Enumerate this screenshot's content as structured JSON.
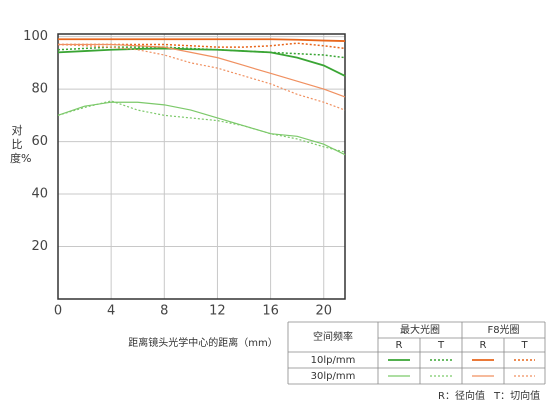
{
  "chart_data": {
    "type": "line",
    "y_label": "对比度%",
    "x_label": "距离镜头光学中心的距离（mm）",
    "x": [
      0,
      2,
      4,
      6,
      8,
      10,
      12,
      14,
      16,
      18,
      20,
      21.6
    ],
    "xlim": [
      0,
      21.6
    ],
    "ylim": [
      0,
      101
    ],
    "xticks": [
      0,
      4,
      8,
      12,
      16,
      20
    ],
    "yticks": [
      20,
      40,
      60,
      80,
      100
    ],
    "grid": true,
    "series": [
      {
        "color": "#3aa534",
        "dash": "solid",
        "width": 1.8,
        "values": [
          94,
          94.5,
          95,
          95.3,
          95.5,
          95.2,
          95,
          94.5,
          94,
          92,
          89,
          85
        ]
      },
      {
        "color": "#3aa534",
        "dash": "dotted",
        "width": 1.5,
        "values": [
          95,
          95.5,
          96,
          96,
          96,
          95.5,
          95,
          94.5,
          94,
          93.5,
          93,
          92
        ]
      },
      {
        "color": "#e8661c",
        "dash": "solid",
        "width": 1.8,
        "values": [
          99,
          99,
          99,
          99,
          99,
          99,
          99,
          99,
          99,
          98.8,
          98.5,
          98.3
        ]
      },
      {
        "color": "#e8661c",
        "dash": "dotted",
        "width": 1.5,
        "values": [
          97,
          97,
          97,
          97,
          97,
          96.5,
          96,
          96,
          96.5,
          97.5,
          96.5,
          95.5
        ]
      },
      {
        "color": "#7cc96a",
        "dash": "solid",
        "width": 1.2,
        "values": [
          70,
          73.5,
          75,
          75,
          74,
          72,
          69,
          66,
          63,
          62,
          59,
          55
        ]
      },
      {
        "color": "#7cc96a",
        "dash": "dotted",
        "width": 1.2,
        "values": [
          70,
          73,
          75.5,
          72,
          70,
          69,
          68,
          66,
          63,
          61,
          58,
          56
        ]
      },
      {
        "color": "#f09060",
        "dash": "solid",
        "width": 1.2,
        "values": [
          97,
          97,
          97,
          96.5,
          96,
          94,
          92,
          89,
          86,
          83,
          80,
          77
        ]
      },
      {
        "color": "#f09060",
        "dash": "dotted",
        "width": 1.2,
        "values": [
          97,
          96.5,
          96,
          95,
          93,
          90,
          88,
          85,
          82,
          78,
          75,
          72
        ]
      }
    ],
    "legend": {
      "header": [
        "空间频率",
        "最大光圈",
        "F8光圈"
      ],
      "subheader": [
        "R",
        "T",
        "R",
        "T"
      ],
      "rows": [
        {
          "label": "10lp/mm",
          "series": [
            0,
            1,
            2,
            3
          ]
        },
        {
          "label": "30lp/mm",
          "series": [
            4,
            5,
            6,
            7
          ]
        }
      ],
      "notes": [
        "R：径向值",
        "T：切向值"
      ]
    }
  }
}
